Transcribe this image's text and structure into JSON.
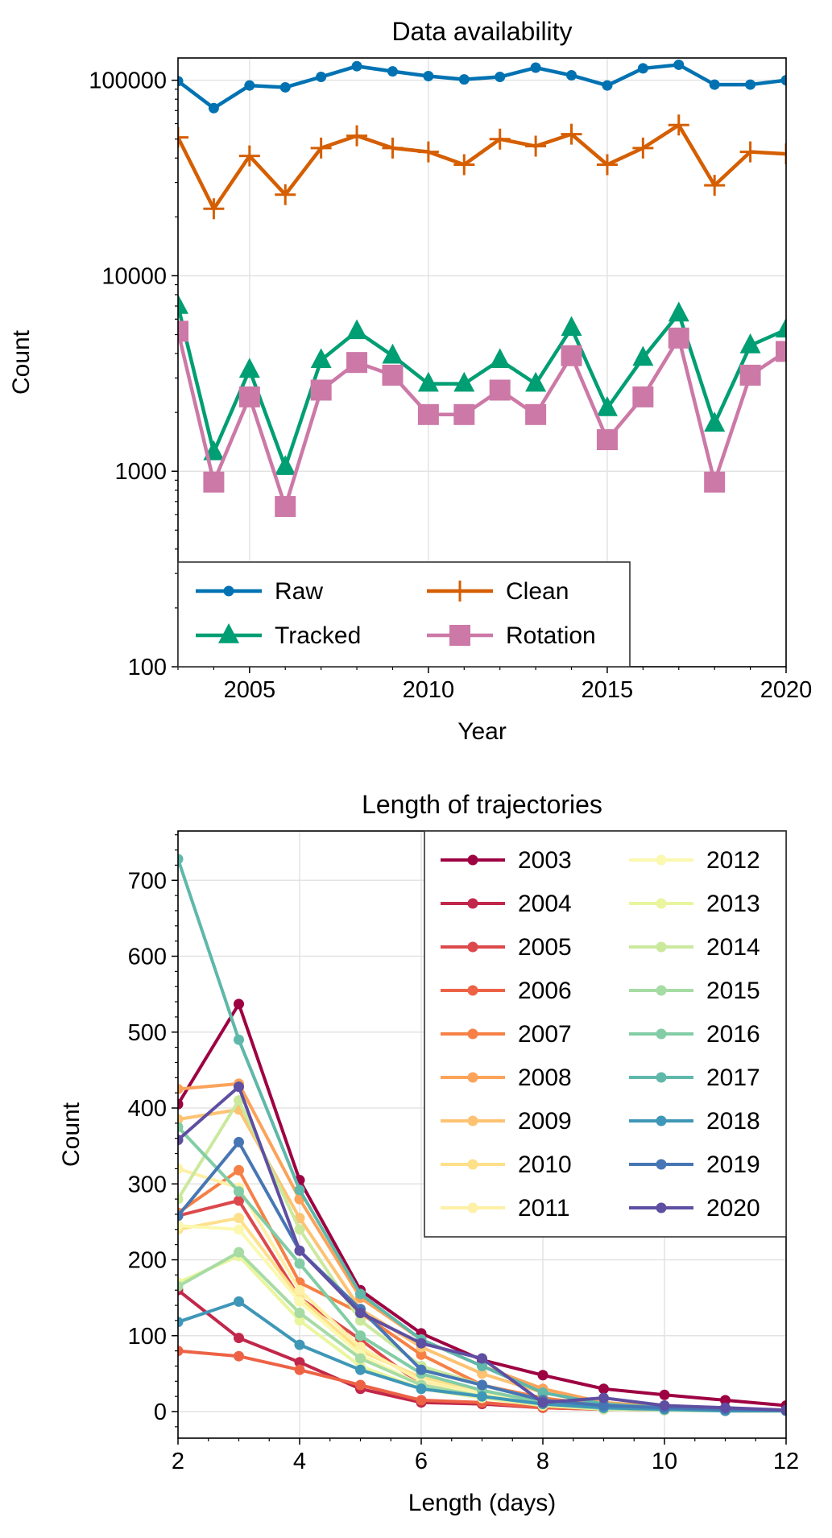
{
  "chart_data": [
    {
      "type": "line",
      "title": "Data availability",
      "xlabel": "Year",
      "ylabel": "Count",
      "xlim": [
        2003,
        2020
      ],
      "ylim": [
        100,
        130000
      ],
      "yscale": "log",
      "grid": true,
      "legend": "lower-left",
      "legend_columns": 2,
      "x_ticks": [
        2005,
        2010,
        2015,
        2020
      ],
      "x_tick_labels": [
        "2005",
        "2010",
        "2015",
        "2020"
      ],
      "y_ticks": [
        100,
        1000,
        10000,
        100000
      ],
      "y_tick_labels": [
        "100",
        "1000",
        "10000",
        "100000"
      ],
      "x": [
        2003,
        2004,
        2005,
        2006,
        2007,
        2008,
        2009,
        2010,
        2011,
        2012,
        2013,
        2014,
        2015,
        2016,
        2017,
        2018,
        2019,
        2020
      ],
      "series": [
        {
          "name": "Raw",
          "color": "#0072b2",
          "marker": "circle",
          "values": [
            99000,
            72000,
            94000,
            92000,
            104000,
            118000,
            111000,
            105000,
            101000,
            104000,
            116000,
            106000,
            94000,
            115000,
            120000,
            95000,
            95000,
            100000
          ]
        },
        {
          "name": "Clean",
          "color": "#d55e00",
          "marker": "plus",
          "values": [
            51000,
            22000,
            41000,
            26000,
            45000,
            52000,
            45000,
            43000,
            37000,
            50000,
            46000,
            53000,
            37000,
            45000,
            59000,
            29000,
            43000,
            42000
          ]
        },
        {
          "name": "Tracked",
          "color": "#009e73",
          "marker": "triangle",
          "values": [
            7000,
            1250,
            3300,
            1050,
            3700,
            5200,
            3900,
            2800,
            2800,
            3700,
            2800,
            5400,
            2100,
            3800,
            6400,
            1750,
            4400,
            5300
          ]
        },
        {
          "name": "Rotation",
          "color": "#cc79a7",
          "marker": "square",
          "values": [
            5200,
            880,
            2400,
            660,
            2600,
            3600,
            3100,
            1950,
            1950,
            2600,
            1950,
            3900,
            1450,
            2400,
            4800,
            880,
            3100,
            4100
          ]
        }
      ]
    },
    {
      "type": "line",
      "title": "Length of trajectories",
      "xlabel": "Length (days)",
      "ylabel": "Count",
      "xlim": [
        2,
        12
      ],
      "ylim": [
        -35,
        765
      ],
      "grid": true,
      "legend": "top-right",
      "legend_columns": 2,
      "x_ticks": [
        2,
        4,
        6,
        8,
        10,
        12
      ],
      "x_tick_labels": [
        "2",
        "4",
        "6",
        "8",
        "10",
        "12"
      ],
      "y_ticks": [
        0,
        100,
        200,
        300,
        400,
        500,
        600,
        700
      ],
      "y_tick_labels": [
        "0",
        "100",
        "200",
        "300",
        "400",
        "500",
        "600",
        "700"
      ],
      "x": [
        2,
        3,
        4,
        5,
        6,
        7,
        8,
        9,
        10,
        11,
        12
      ],
      "series": [
        {
          "name": "2003",
          "color": "#9e0142",
          "values": [
            405,
            537,
            305,
            160,
            103,
            68,
            48,
            30,
            22,
            15,
            8
          ]
        },
        {
          "name": "2004",
          "color": "#c1274a",
          "values": [
            160,
            97,
            65,
            30,
            12,
            10,
            5,
            3,
            2,
            2,
            1
          ]
        },
        {
          "name": "2005",
          "color": "#dc494c",
          "values": [
            258,
            278,
            150,
            95,
            35,
            22,
            12,
            6,
            3,
            2,
            1
          ]
        },
        {
          "name": "2006",
          "color": "#ed6245",
          "values": [
            80,
            73,
            55,
            35,
            15,
            12,
            5,
            3,
            2,
            1,
            1
          ]
        },
        {
          "name": "2007",
          "color": "#f68045",
          "values": [
            262,
            318,
            170,
            130,
            75,
            35,
            18,
            8,
            4,
            2,
            1
          ]
        },
        {
          "name": "2008",
          "color": "#fba35b",
          "values": [
            425,
            432,
            280,
            150,
            95,
            60,
            30,
            12,
            6,
            3,
            1
          ]
        },
        {
          "name": "2009",
          "color": "#fdc373",
          "values": [
            385,
            398,
            255,
            135,
            85,
            50,
            25,
            10,
            5,
            2,
            1
          ]
        },
        {
          "name": "2010",
          "color": "#fee08b",
          "values": [
            240,
            255,
            150,
            80,
            45,
            28,
            12,
            5,
            3,
            1,
            1
          ]
        },
        {
          "name": "2011",
          "color": "#fef0a7",
          "values": [
            320,
            295,
            160,
            85,
            40,
            25,
            10,
            5,
            3,
            1,
            1
          ]
        },
        {
          "name": "2012",
          "color": "#fbf8b0",
          "values": [
            245,
            240,
            145,
            75,
            35,
            22,
            10,
            4,
            2,
            1,
            1
          ]
        },
        {
          "name": "2013",
          "color": "#eaf69e",
          "values": [
            170,
            205,
            120,
            60,
            30,
            18,
            8,
            3,
            2,
            1,
            1
          ]
        },
        {
          "name": "2014",
          "color": "#cbe99d",
          "values": [
            280,
            410,
            240,
            120,
            60,
            35,
            15,
            6,
            3,
            2,
            1
          ]
        },
        {
          "name": "2015",
          "color": "#a7dba4",
          "values": [
            165,
            210,
            130,
            70,
            35,
            20,
            10,
            4,
            2,
            1,
            1
          ]
        },
        {
          "name": "2016",
          "color": "#82cda5",
          "values": [
            375,
            290,
            195,
            100,
            50,
            28,
            12,
            5,
            3,
            1,
            1
          ]
        },
        {
          "name": "2017",
          "color": "#5fb8aa",
          "values": [
            728,
            490,
            292,
            155,
            95,
            60,
            25,
            10,
            5,
            2,
            1
          ]
        },
        {
          "name": "2018",
          "color": "#3f97b7",
          "values": [
            118,
            145,
            88,
            55,
            30,
            20,
            10,
            5,
            3,
            1,
            1
          ]
        },
        {
          "name": "2019",
          "color": "#4776b4",
          "values": [
            258,
            355,
            212,
            135,
            55,
            35,
            15,
            8,
            5,
            3,
            2
          ]
        },
        {
          "name": "2020",
          "color": "#5e4fa2",
          "values": [
            358,
            428,
            212,
            130,
            90,
            70,
            12,
            18,
            8,
            5,
            2
          ]
        }
      ]
    }
  ]
}
